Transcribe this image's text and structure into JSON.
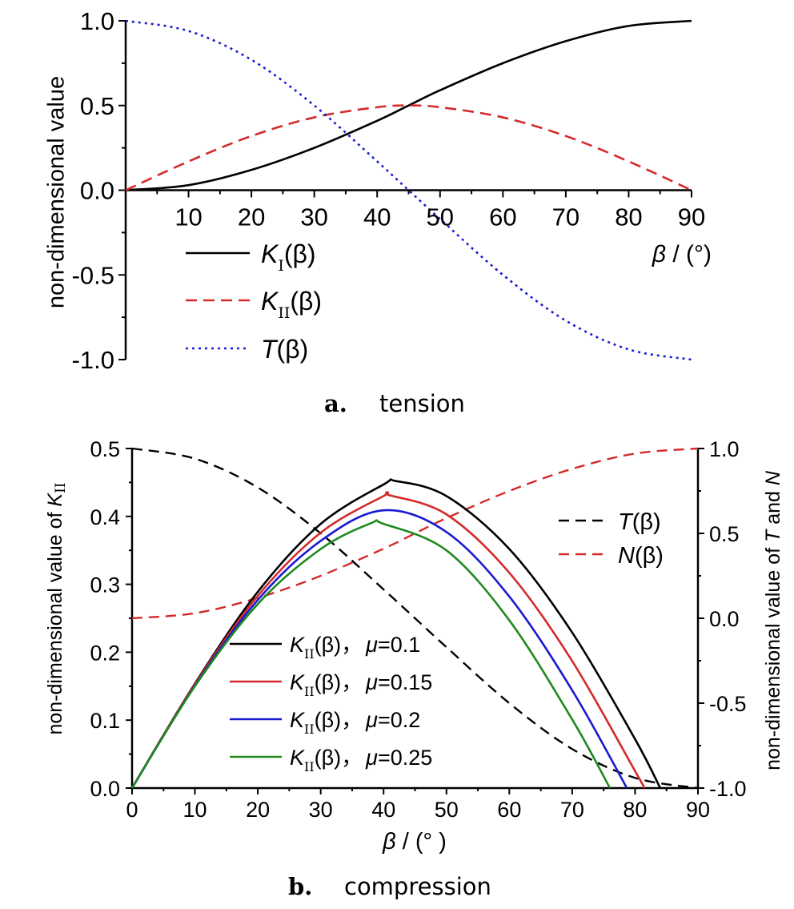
{
  "chart_data": [
    {
      "id": "tension",
      "type": "line",
      "panel_label": "a.",
      "caption": "tension",
      "xlabel": {
        "sym": "β",
        "unit": " / (°)"
      },
      "ylabel": "non-dimensional value",
      "xlim": [
        0,
        90
      ],
      "ylim": [
        -1.0,
        1.0
      ],
      "xticks": [
        10,
        20,
        30,
        40,
        50,
        60,
        70,
        80,
        90
      ],
      "yticks": [
        "1.0",
        "0.5",
        "0.0",
        "-0.5",
        "-1.0"
      ],
      "grid": false,
      "legend_position": "lower-left",
      "series": [
        {
          "key": "KI",
          "color": "#000000",
          "dash": "solid",
          "legend": {
            "sym": "K",
            "sub": "I",
            "arg": "(β)"
          },
          "x": [
            0,
            10,
            20,
            30,
            40,
            45,
            50,
            60,
            70,
            80,
            90
          ],
          "y": [
            0.0,
            0.03,
            0.12,
            0.25,
            0.41,
            0.5,
            0.59,
            0.75,
            0.88,
            0.97,
            1.0
          ]
        },
        {
          "key": "KII",
          "color": "#d42a2a",
          "dash": "dashed",
          "legend": {
            "sym": "K",
            "sub": "II",
            "arg": "(β)"
          },
          "x": [
            0,
            10,
            20,
            30,
            40,
            45,
            50,
            60,
            70,
            80,
            90
          ],
          "y": [
            0.0,
            0.17,
            0.32,
            0.43,
            0.49,
            0.5,
            0.49,
            0.43,
            0.32,
            0.17,
            0.0
          ]
        },
        {
          "key": "T",
          "color": "#1a1ad4",
          "dash": "dotted",
          "legend": {
            "sym": "T",
            "sub": "",
            "arg": "(β)"
          },
          "x": [
            0,
            10,
            20,
            30,
            40,
            45,
            50,
            60,
            70,
            80,
            90
          ],
          "y": [
            1.0,
            0.94,
            0.77,
            0.5,
            0.17,
            0.0,
            -0.17,
            -0.5,
            -0.77,
            -0.94,
            -1.0
          ]
        }
      ]
    },
    {
      "id": "compression",
      "type": "line",
      "panel_label": "b.",
      "caption": "compression",
      "xlabel": {
        "sym": "β",
        "unit": " / (° )"
      },
      "ylabel_left": {
        "text": "non-dimensional value of ",
        "sym": "K",
        "sub": "II"
      },
      "ylabel_right": {
        "pre": "non-dimensional value of ",
        "sym1": "T",
        "mid": " and ",
        "sym2": "N"
      },
      "xlim": [
        0,
        90
      ],
      "ylim_left": [
        0.0,
        0.5
      ],
      "ylim_right": [
        -1.0,
        1.0
      ],
      "xticks": [
        0,
        10,
        20,
        30,
        40,
        50,
        60,
        70,
        80,
        90
      ],
      "yticks_left": [
        "0.0",
        "0.1",
        "0.2",
        "0.3",
        "0.4",
        "0.5"
      ],
      "yticks_right": [
        "-1.0",
        "-0.5",
        "0.0",
        "0.5",
        "1.0"
      ],
      "grid": false,
      "legend_positions": [
        "top-right",
        "lower-left"
      ],
      "series_right": [
        {
          "key": "T",
          "color": "#000000",
          "dash": "dashed",
          "legend": {
            "sym": "T",
            "arg": "(β)"
          },
          "x": [
            0,
            10,
            20,
            30,
            40,
            45,
            50,
            60,
            70,
            80,
            90
          ],
          "y": [
            1.0,
            0.94,
            0.77,
            0.5,
            0.17,
            0.0,
            -0.17,
            -0.5,
            -0.77,
            -0.94,
            -1.0
          ]
        },
        {
          "key": "N",
          "color": "#d42a2a",
          "dash": "dashed",
          "legend": {
            "sym": "N",
            "arg": "(β)"
          },
          "x": [
            0,
            10,
            20,
            30,
            40,
            45,
            50,
            60,
            70,
            80,
            90
          ],
          "y": [
            0.0,
            0.03,
            0.12,
            0.25,
            0.41,
            0.5,
            0.59,
            0.75,
            0.88,
            0.97,
            1.0
          ]
        }
      ],
      "series_left": [
        {
          "key": "KII_mu_0.1",
          "color": "#000000",
          "legend": {
            "sym": "K",
            "sub": "II",
            "arg": "(β)，",
            "mu": "μ",
            "val": "=0.1"
          },
          "x": [
            0,
            10,
            20,
            30,
            40,
            42,
            50,
            60,
            70,
            80,
            84
          ],
          "y": [
            0.0,
            0.154,
            0.289,
            0.389,
            0.447,
            0.452,
            0.43,
            0.352,
            0.229,
            0.072,
            0.0
          ]
        },
        {
          "key": "KII_mu_0.15",
          "color": "#d42a2a",
          "legend": {
            "sym": "K",
            "sub": "II",
            "arg": "(β)，",
            "mu": "μ",
            "val": "=0.15"
          },
          "x": [
            0,
            10,
            20,
            30,
            40,
            41,
            50,
            60,
            70,
            80,
            81.5
          ],
          "y": [
            0.0,
            0.153,
            0.283,
            0.376,
            0.43,
            0.431,
            0.403,
            0.317,
            0.187,
            0.025,
            0.0
          ]
        },
        {
          "key": "KII_mu_0.2",
          "color": "#1a1ad4",
          "legend": {
            "sym": "K",
            "sub": "II",
            "arg": "(β)，",
            "mu": "μ",
            "val": "=0.2"
          },
          "x": [
            0,
            10,
            20,
            30,
            40,
            50,
            60,
            70,
            78.7
          ],
          "y": [
            0.0,
            0.151,
            0.277,
            0.364,
            0.409,
            0.377,
            0.282,
            0.144,
            0.0
          ]
        },
        {
          "key": "KII_mu_0.25",
          "color": "#1f8a1f",
          "legend": {
            "sym": "K",
            "sub": "II",
            "arg": "(β)，",
            "mu": "μ",
            "val": "=0.25"
          },
          "x": [
            0,
            10,
            20,
            30,
            38,
            40,
            50,
            60,
            70,
            76
          ],
          "y": [
            0.0,
            0.15,
            0.271,
            0.352,
            0.39,
            0.389,
            0.35,
            0.247,
            0.101,
            0.0
          ]
        }
      ]
    }
  ]
}
